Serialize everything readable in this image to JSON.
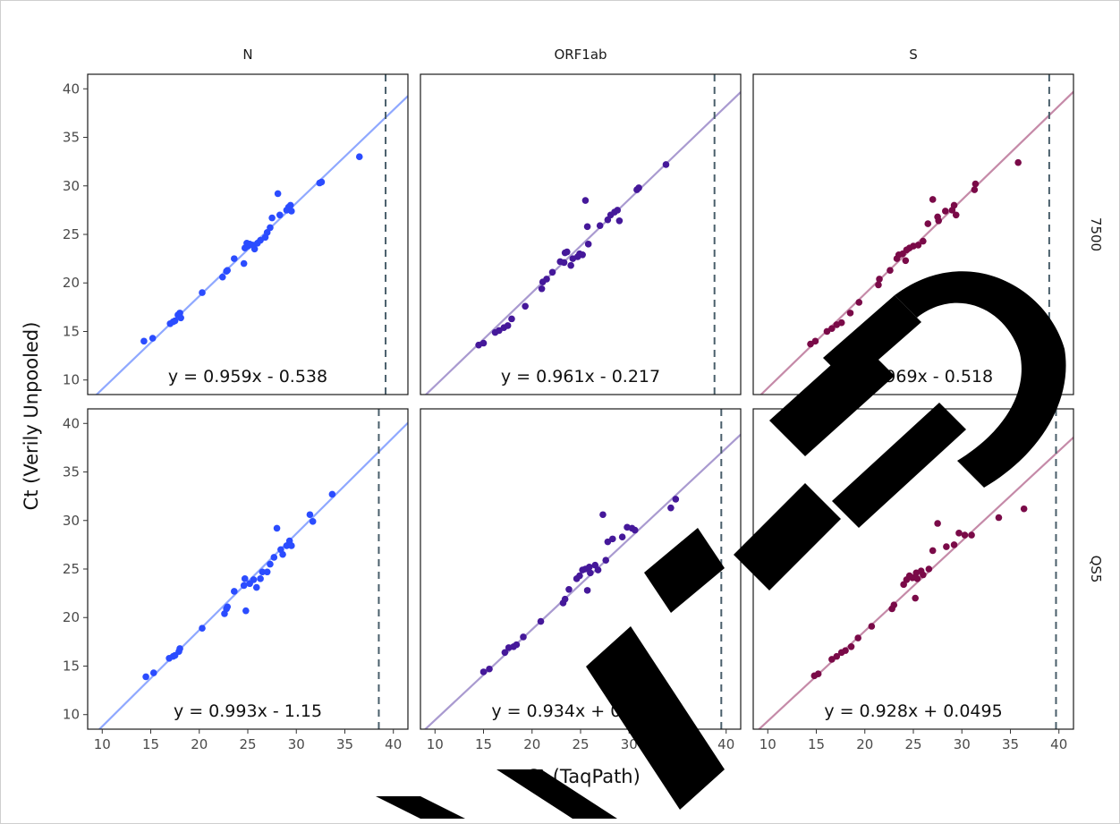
{
  "chart_data": {
    "type": "scatter",
    "xlabel": "Ct (TaqPath)",
    "ylabel": "Ct (Verily Unpooled)",
    "col_facets": [
      "N",
      "ORF1ab",
      "S"
    ],
    "row_facets": [
      "7500",
      "QS5"
    ],
    "xlim": [
      8.5,
      41.5
    ],
    "ylim": [
      8.5,
      41.5
    ],
    "x_ticks": [
      10,
      15,
      20,
      25,
      30,
      35,
      40
    ],
    "y_ticks": [
      10,
      15,
      20,
      25,
      30,
      35,
      40
    ],
    "x_tick_labels": [
      "10",
      "15",
      "20",
      "25",
      "30",
      "35",
      "40"
    ],
    "y_tick_labels": [
      "10",
      "15",
      "20",
      "25",
      "30",
      "35",
      "40"
    ],
    "series_colors": {
      "N": {
        "point": "#2b4cff",
        "line": "#8fa8ff"
      },
      "ORF1ab": {
        "point": "#45189a",
        "line": "#a99ad0"
      },
      "S": {
        "point": "#7a0a48",
        "line": "#c58aa8"
      }
    },
    "panels": [
      {
        "row": "7500",
        "col": "N",
        "slope": 0.959,
        "intercept": -0.538,
        "cutoff": 39.2,
        "equation": "y = 0.959x - 0.538",
        "points": [
          [
            14.3,
            14
          ],
          [
            15.2,
            14.3
          ],
          [
            17.0,
            15.8
          ],
          [
            17.3,
            16.0
          ],
          [
            17.5,
            16.1
          ],
          [
            17.8,
            16.7
          ],
          [
            18.1,
            16.4
          ],
          [
            18.0,
            16.9
          ],
          [
            20.3,
            19.0
          ],
          [
            22.4,
            20.6
          ],
          [
            22.8,
            21.2
          ],
          [
            22.9,
            21.3
          ],
          [
            23.6,
            22.5
          ],
          [
            24.6,
            22.0
          ],
          [
            24.7,
            23.6
          ],
          [
            24.9,
            24.1
          ],
          [
            25.0,
            23.8
          ],
          [
            25.2,
            24.0
          ],
          [
            25.5,
            23.9
          ],
          [
            25.7,
            23.5
          ],
          [
            26.0,
            24.1
          ],
          [
            26.3,
            24.4
          ],
          [
            26.8,
            24.7
          ],
          [
            27.0,
            25.2
          ],
          [
            27.3,
            25.7
          ],
          [
            27.5,
            26.7
          ],
          [
            28.1,
            29.2
          ],
          [
            28.3,
            27.0
          ],
          [
            29.0,
            27.5
          ],
          [
            29.2,
            27.8
          ],
          [
            29.4,
            28.0
          ],
          [
            29.5,
            27.4
          ],
          [
            32.4,
            30.3
          ],
          [
            32.6,
            30.4
          ],
          [
            36.5,
            33.0
          ]
        ]
      },
      {
        "row": "7500",
        "col": "ORF1ab",
        "slope": 0.961,
        "intercept": -0.217,
        "cutoff": 38.8,
        "equation": "y = 0.961x - 0.217",
        "points": [
          [
            14.5,
            13.6
          ],
          [
            15.0,
            13.8
          ],
          [
            16.2,
            14.9
          ],
          [
            16.6,
            15.1
          ],
          [
            17.1,
            15.4
          ],
          [
            17.5,
            15.6
          ],
          [
            17.9,
            16.3
          ],
          [
            19.3,
            17.6
          ],
          [
            21.0,
            19.4
          ],
          [
            21.1,
            20.1
          ],
          [
            21.5,
            20.4
          ],
          [
            22.1,
            21.1
          ],
          [
            22.9,
            22.2
          ],
          [
            23.3,
            22.1
          ],
          [
            23.4,
            23.1
          ],
          [
            23.6,
            23.2
          ],
          [
            24.0,
            21.8
          ],
          [
            24.2,
            22.5
          ],
          [
            24.7,
            22.7
          ],
          [
            24.9,
            23.0
          ],
          [
            25.2,
            22.9
          ],
          [
            25.5,
            28.5
          ],
          [
            25.7,
            25.8
          ],
          [
            25.8,
            24.0
          ],
          [
            27.0,
            25.9
          ],
          [
            27.8,
            26.5
          ],
          [
            28.1,
            27.0
          ],
          [
            28.5,
            27.3
          ],
          [
            28.8,
            27.5
          ],
          [
            29.0,
            26.4
          ],
          [
            30.8,
            29.6
          ],
          [
            31.0,
            29.8
          ],
          [
            33.8,
            32.2
          ]
        ]
      },
      {
        "row": "7500",
        "col": "S",
        "slope": 0.969,
        "intercept": -0.518,
        "cutoff": 39.0,
        "equation": "y = 0.969x - 0.518",
        "points": [
          [
            14.4,
            13.7
          ],
          [
            14.9,
            14.0
          ],
          [
            16.1,
            15.0
          ],
          [
            16.6,
            15.3
          ],
          [
            17.1,
            15.7
          ],
          [
            17.6,
            15.9
          ],
          [
            18.5,
            16.9
          ],
          [
            19.4,
            18.0
          ],
          [
            21.4,
            19.8
          ],
          [
            21.5,
            20.4
          ],
          [
            22.6,
            21.3
          ],
          [
            23.3,
            22.5
          ],
          [
            23.5,
            22.9
          ],
          [
            23.9,
            23.0
          ],
          [
            24.2,
            22.3
          ],
          [
            24.3,
            23.4
          ],
          [
            24.6,
            23.6
          ],
          [
            25.0,
            23.8
          ],
          [
            25.5,
            23.9
          ],
          [
            26.0,
            24.3
          ],
          [
            26.5,
            26.1
          ],
          [
            27.0,
            28.6
          ],
          [
            27.5,
            26.8
          ],
          [
            27.6,
            26.4
          ],
          [
            28.3,
            27.4
          ],
          [
            29.0,
            27.5
          ],
          [
            29.2,
            28.0
          ],
          [
            29.4,
            27.0
          ],
          [
            31.3,
            29.6
          ],
          [
            31.4,
            30.2
          ],
          [
            35.8,
            32.4
          ]
        ]
      },
      {
        "row": "QS5",
        "col": "N",
        "slope": 0.993,
        "intercept": -1.15,
        "cutoff": 38.5,
        "equation": "y = 0.993x - 1.15",
        "points": [
          [
            14.5,
            13.9
          ],
          [
            15.3,
            14.3
          ],
          [
            16.9,
            15.8
          ],
          [
            17.3,
            16.0
          ],
          [
            17.5,
            16.1
          ],
          [
            17.9,
            16.5
          ],
          [
            18.0,
            16.8
          ],
          [
            20.3,
            18.9
          ],
          [
            22.6,
            20.4
          ],
          [
            22.8,
            20.9
          ],
          [
            22.9,
            21.1
          ],
          [
            23.6,
            22.7
          ],
          [
            24.6,
            23.3
          ],
          [
            24.7,
            24.0
          ],
          [
            24.8,
            20.7
          ],
          [
            25.2,
            23.5
          ],
          [
            25.6,
            23.9
          ],
          [
            25.9,
            23.1
          ],
          [
            26.3,
            24.0
          ],
          [
            26.5,
            24.7
          ],
          [
            27.0,
            24.7
          ],
          [
            27.3,
            25.5
          ],
          [
            27.7,
            26.2
          ],
          [
            28.0,
            29.2
          ],
          [
            28.4,
            27.0
          ],
          [
            28.6,
            26.5
          ],
          [
            29.0,
            27.4
          ],
          [
            29.3,
            27.9
          ],
          [
            29.5,
            27.4
          ],
          [
            31.4,
            30.6
          ],
          [
            31.7,
            29.9
          ],
          [
            33.7,
            32.7
          ]
        ]
      },
      {
        "row": "QS5",
        "col": "ORF1ab",
        "slope": 0.934,
        "intercept": 0.0901,
        "cutoff": 39.5,
        "equation": "y = 0.934x + 0.0901",
        "points": [
          [
            15.0,
            14.4
          ],
          [
            15.6,
            14.7
          ],
          [
            17.2,
            16.4
          ],
          [
            17.6,
            16.9
          ],
          [
            18.1,
            17.0
          ],
          [
            18.4,
            17.2
          ],
          [
            19.1,
            18.0
          ],
          [
            20.9,
            19.6
          ],
          [
            23.2,
            21.5
          ],
          [
            23.4,
            21.9
          ],
          [
            23.8,
            22.9
          ],
          [
            24.6,
            24.0
          ],
          [
            24.9,
            24.3
          ],
          [
            25.2,
            24.9
          ],
          [
            25.5,
            25.0
          ],
          [
            25.7,
            22.8
          ],
          [
            25.9,
            25.2
          ],
          [
            26.0,
            24.6
          ],
          [
            26.5,
            25.4
          ],
          [
            26.8,
            24.9
          ],
          [
            27.3,
            30.6
          ],
          [
            27.6,
            25.9
          ],
          [
            27.8,
            27.8
          ],
          [
            28.3,
            28.1
          ],
          [
            29.3,
            28.3
          ],
          [
            29.8,
            29.3
          ],
          [
            30.3,
            29.2
          ],
          [
            30.6,
            29.0
          ],
          [
            34.3,
            31.3
          ],
          [
            34.8,
            32.2
          ]
        ]
      },
      {
        "row": "QS5",
        "col": "S",
        "slope": 0.928,
        "intercept": 0.0495,
        "cutoff": 39.7,
        "equation": "y = 0.928x + 0.0495",
        "points": [
          [
            14.8,
            14.0
          ],
          [
            15.2,
            14.2
          ],
          [
            16.6,
            15.7
          ],
          [
            17.1,
            16.0
          ],
          [
            17.6,
            16.4
          ],
          [
            18.0,
            16.6
          ],
          [
            18.6,
            17.0
          ],
          [
            19.3,
            17.9
          ],
          [
            20.7,
            19.1
          ],
          [
            22.8,
            20.9
          ],
          [
            23.0,
            21.3
          ],
          [
            24.0,
            23.4
          ],
          [
            24.3,
            23.9
          ],
          [
            24.6,
            24.3
          ],
          [
            24.9,
            24.1
          ],
          [
            25.2,
            22.0
          ],
          [
            25.3,
            24.6
          ],
          [
            25.4,
            24.0
          ],
          [
            25.8,
            24.8
          ],
          [
            26.0,
            24.4
          ],
          [
            26.6,
            25.0
          ],
          [
            27.0,
            26.9
          ],
          [
            27.5,
            29.7
          ],
          [
            28.4,
            27.3
          ],
          [
            29.2,
            27.5
          ],
          [
            29.7,
            28.7
          ],
          [
            30.3,
            28.5
          ],
          [
            31.0,
            28.5
          ],
          [
            33.8,
            30.3
          ],
          [
            36.4,
            31.2
          ]
        ]
      }
    ]
  }
}
